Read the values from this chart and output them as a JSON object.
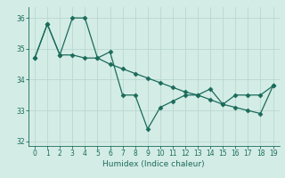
{
  "xlabel": "Humidex (Indice chaleur)",
  "background_color": "#d4ece6",
  "line_color": "#1a6b5a",
  "x_line1": [
    0,
    1,
    2,
    3,
    4,
    5,
    6,
    7,
    8,
    9,
    10,
    11,
    12,
    13,
    14,
    15,
    16,
    17,
    18,
    19
  ],
  "y_line1": [
    34.7,
    35.8,
    34.8,
    36.0,
    36.0,
    34.7,
    34.9,
    33.5,
    33.5,
    32.4,
    33.1,
    33.3,
    33.5,
    33.5,
    33.7,
    33.2,
    33.5,
    33.5,
    33.5,
    33.8
  ],
  "x_line2": [
    0,
    1,
    2,
    3,
    4,
    5,
    6,
    7,
    8,
    9,
    10,
    11,
    12,
    13,
    14,
    15,
    16,
    17,
    18,
    19
  ],
  "y_line2": [
    34.7,
    35.8,
    34.8,
    34.8,
    34.7,
    34.7,
    34.5,
    34.35,
    34.2,
    34.05,
    33.9,
    33.75,
    33.6,
    33.5,
    33.35,
    33.2,
    33.1,
    33.0,
    32.9,
    33.8
  ],
  "ylim": [
    31.85,
    36.35
  ],
  "xlim": [
    -0.5,
    19.5
  ],
  "yticks": [
    32,
    33,
    34,
    35,
    36
  ],
  "xticks": [
    0,
    1,
    2,
    3,
    4,
    5,
    6,
    7,
    8,
    9,
    10,
    11,
    12,
    13,
    14,
    15,
    16,
    17,
    18,
    19
  ],
  "grid_color": "#b8d8d0",
  "marker": "D",
  "markersize": 2.5,
  "linewidth": 0.9
}
